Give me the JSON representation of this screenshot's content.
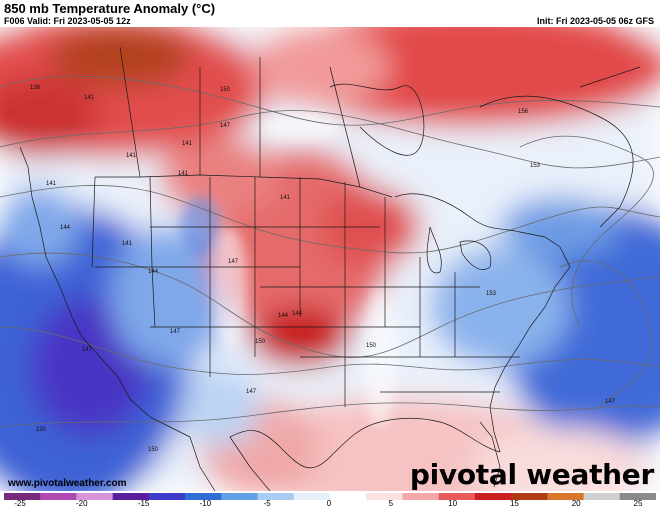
{
  "header": {
    "title": "850 mb Temperature Anomaly (°C)",
    "valid": "F006 Valid: Fri 2023-05-05 12z",
    "init": "Init: Fri 2023-05-05 06z GFS"
  },
  "footer": {
    "site": "www.pivotalweather.com",
    "brand": "pivotal weather"
  },
  "colorbar": {
    "ticks": [
      "-25",
      "-20",
      "-15",
      "-10",
      "-5",
      "0",
      "5",
      "10",
      "15",
      "20",
      "25"
    ],
    "range": [
      -25,
      25
    ],
    "colors": [
      "#7a2a7a",
      "#b04ab0",
      "#d896d8",
      "#5a1e9e",
      "#3c3cc8",
      "#2e6ed6",
      "#5fa0e6",
      "#a9cdf2",
      "#e6f0fb",
      "#ffffff",
      "#fbe2e2",
      "#f4a8a8",
      "#e65c5c",
      "#cc2020",
      "#b23a10",
      "#d8762c",
      "#cfcfcf",
      "#8a8a8a"
    ]
  },
  "contour_labels": [
    "136",
    "141",
    "141",
    "141",
    "141",
    "141",
    "144",
    "141",
    "141",
    "144",
    "147",
    "144",
    "150",
    "150",
    "147",
    "147",
    "150",
    "147",
    "147",
    "147",
    "150",
    "150",
    "153",
    "153",
    "156",
    "144"
  ],
  "colors": {
    "warm": "#d63a3a",
    "cold": "#3a5ccc",
    "very_cold": "#6a2fae",
    "boundaries": "#1a1a1a"
  }
}
